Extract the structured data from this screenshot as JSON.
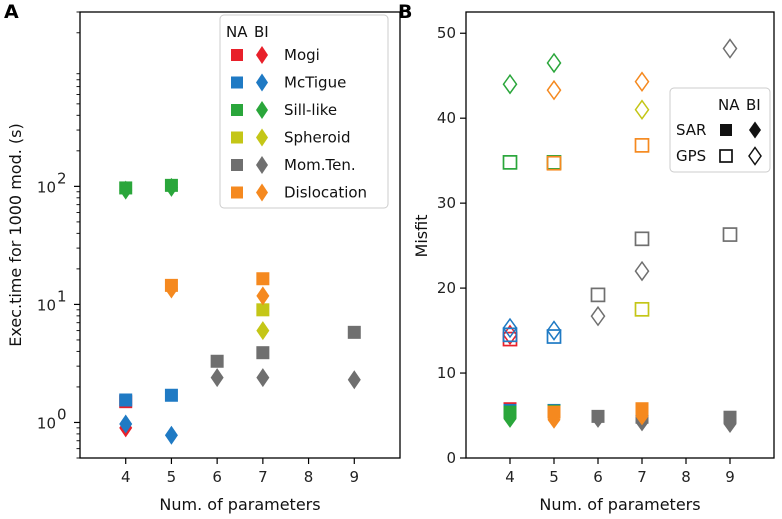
{
  "chart_data": [
    {
      "panel": "A",
      "type": "scatter",
      "xlabel": "Num. of parameters",
      "ylabel": "Exec.time for 1000 mod. (s)",
      "yscale": "log",
      "xlim": [
        3,
        10
      ],
      "ylim": [
        0.5,
        3000
      ],
      "x_ticks": [
        4,
        5,
        6,
        7,
        8,
        9
      ],
      "y_ticks": [
        {
          "value": 1,
          "base": "10",
          "exp": "0"
        },
        {
          "value": 10,
          "base": "10",
          "exp": "1"
        },
        {
          "value": 100,
          "base": "10",
          "exp": "2"
        }
      ],
      "legend": {
        "position": "top-right",
        "header_na": "NA",
        "header_bi": "BI",
        "entries": [
          {
            "label": "Mogi",
            "color": "#e8202a"
          },
          {
            "label": "McTigue",
            "color": "#1f7ac4"
          },
          {
            "label": "Sill-like",
            "color": "#2aa63b"
          },
          {
            "label": "Spheroid",
            "color": "#c4c617"
          },
          {
            "label": "Mom.Ten.",
            "color": "#6f6f6f"
          },
          {
            "label": "Dislocation",
            "color": "#f5891f"
          }
        ]
      },
      "series": [
        {
          "name": "Mogi",
          "color": "#e8202a",
          "NA": [
            [
              4,
              1.5
            ]
          ],
          "BI": [
            [
              4,
              0.9
            ]
          ]
        },
        {
          "name": "McTigue",
          "color": "#1f7ac4",
          "NA": [
            [
              4,
              1.55
            ],
            [
              5,
              1.7
            ]
          ],
          "BI": [
            [
              4,
              0.97
            ],
            [
              5,
              0.78
            ]
          ]
        },
        {
          "name": "Sill-like",
          "color": "#2aa63b",
          "NA": [
            [
              4,
              97
            ],
            [
              5,
              102
            ]
          ],
          "BI": [
            [
              4,
              93
            ],
            [
              5,
              98
            ]
          ]
        },
        {
          "name": "Spheroid",
          "color": "#c4c617",
          "NA": [
            [
              7,
              9
            ]
          ],
          "BI": [
            [
              7,
              6
            ]
          ]
        },
        {
          "name": "Mom.Ten.",
          "color": "#6f6f6f",
          "NA": [
            [
              6,
              3.3
            ],
            [
              7,
              3.9
            ],
            [
              9,
              5.8
            ]
          ],
          "BI": [
            [
              6,
              2.4
            ],
            [
              7,
              2.4
            ],
            [
              9,
              2.3
            ]
          ]
        },
        {
          "name": "Dislocation",
          "color": "#f5891f",
          "NA": [
            [
              5,
              14.5
            ],
            [
              7,
              16.5
            ]
          ],
          "BI": [
            [
              5,
              13.5
            ],
            [
              7,
              11.8
            ]
          ]
        }
      ]
    },
    {
      "panel": "B",
      "type": "scatter",
      "xlabel": "Num. of parameters",
      "ylabel": "Misfit",
      "yscale": "linear",
      "xlim": [
        3,
        10
      ],
      "ylim": [
        0,
        52.5
      ],
      "x_ticks": [
        4,
        5,
        6,
        7,
        8,
        9
      ],
      "y_ticks": [
        0,
        10,
        20,
        30,
        40,
        50
      ],
      "legend": {
        "position": "right",
        "header_na": "NA",
        "header_bi": "BI",
        "entries": [
          {
            "label": "SAR",
            "filled": true
          },
          {
            "label": "GPS",
            "filled": false
          }
        ]
      },
      "series": [
        {
          "name": "Mogi",
          "color": "#e8202a",
          "NA_GPS": [
            [
              4,
              14
            ]
          ],
          "BI_GPS": [
            [
              4,
              14.5
            ]
          ],
          "NA_SAR": [
            [
              4,
              5.8
            ]
          ],
          "BI_SAR": [
            [
              4,
              4.9
            ]
          ]
        },
        {
          "name": "McTigue",
          "color": "#1f7ac4",
          "NA_GPS": [
            [
              4,
              14.5
            ],
            [
              5,
              14.3
            ]
          ],
          "BI_GPS": [
            [
              4,
              15.3
            ],
            [
              5,
              15
            ]
          ],
          "NA_SAR": [
            [
              4,
              5.6
            ],
            [
              5,
              5.6
            ]
          ],
          "BI_SAR": [
            [
              4,
              5.0
            ],
            [
              5,
              4.8
            ]
          ]
        },
        {
          "name": "Sill-like",
          "color": "#2aa63b",
          "NA_GPS": [
            [
              4,
              34.8
            ],
            [
              5,
              34.8
            ]
          ],
          "BI_GPS": [
            [
              4,
              44
            ],
            [
              5,
              46.5
            ]
          ],
          "NA_SAR": [
            [
              4,
              5.4
            ],
            [
              5,
              5.5
            ]
          ],
          "BI_SAR": [
            [
              4,
              4.6
            ],
            [
              5,
              4.8
            ]
          ]
        },
        {
          "name": "Spheroid",
          "color": "#c4c617",
          "NA_GPS": [
            [
              7,
              17.5
            ]
          ],
          "BI_GPS": [
            [
              7,
              41
            ]
          ],
          "NA_SAR": [
            [
              7,
              5.3
            ]
          ],
          "BI_SAR": [
            [
              7,
              4.4
            ]
          ]
        },
        {
          "name": "Mom.Ten.",
          "color": "#6f6f6f",
          "NA_GPS": [
            [
              6,
              19.2
            ],
            [
              7,
              25.8
            ],
            [
              9,
              26.3
            ]
          ],
          "BI_GPS": [
            [
              6,
              16.7
            ],
            [
              7,
              22
            ],
            [
              9,
              48.2
            ]
          ],
          "NA_SAR": [
            [
              6,
              4.9
            ],
            [
              7,
              4.8
            ],
            [
              9,
              4.8
            ]
          ],
          "BI_SAR": [
            [
              6,
              4.6
            ],
            [
              7,
              4.2
            ],
            [
              9,
              4.0
            ]
          ]
        },
        {
          "name": "Dislocation",
          "color": "#f5891f",
          "NA_GPS": [
            [
              5,
              34.7
            ],
            [
              7,
              36.8
            ]
          ],
          "BI_GPS": [
            [
              5,
              43.3
            ],
            [
              7,
              44.3
            ]
          ],
          "NA_SAR": [
            [
              5,
              5.4
            ],
            [
              7,
              5.8
            ]
          ],
          "BI_SAR": [
            [
              5,
              4.5
            ],
            [
              7,
              4.9
            ]
          ]
        }
      ]
    }
  ]
}
